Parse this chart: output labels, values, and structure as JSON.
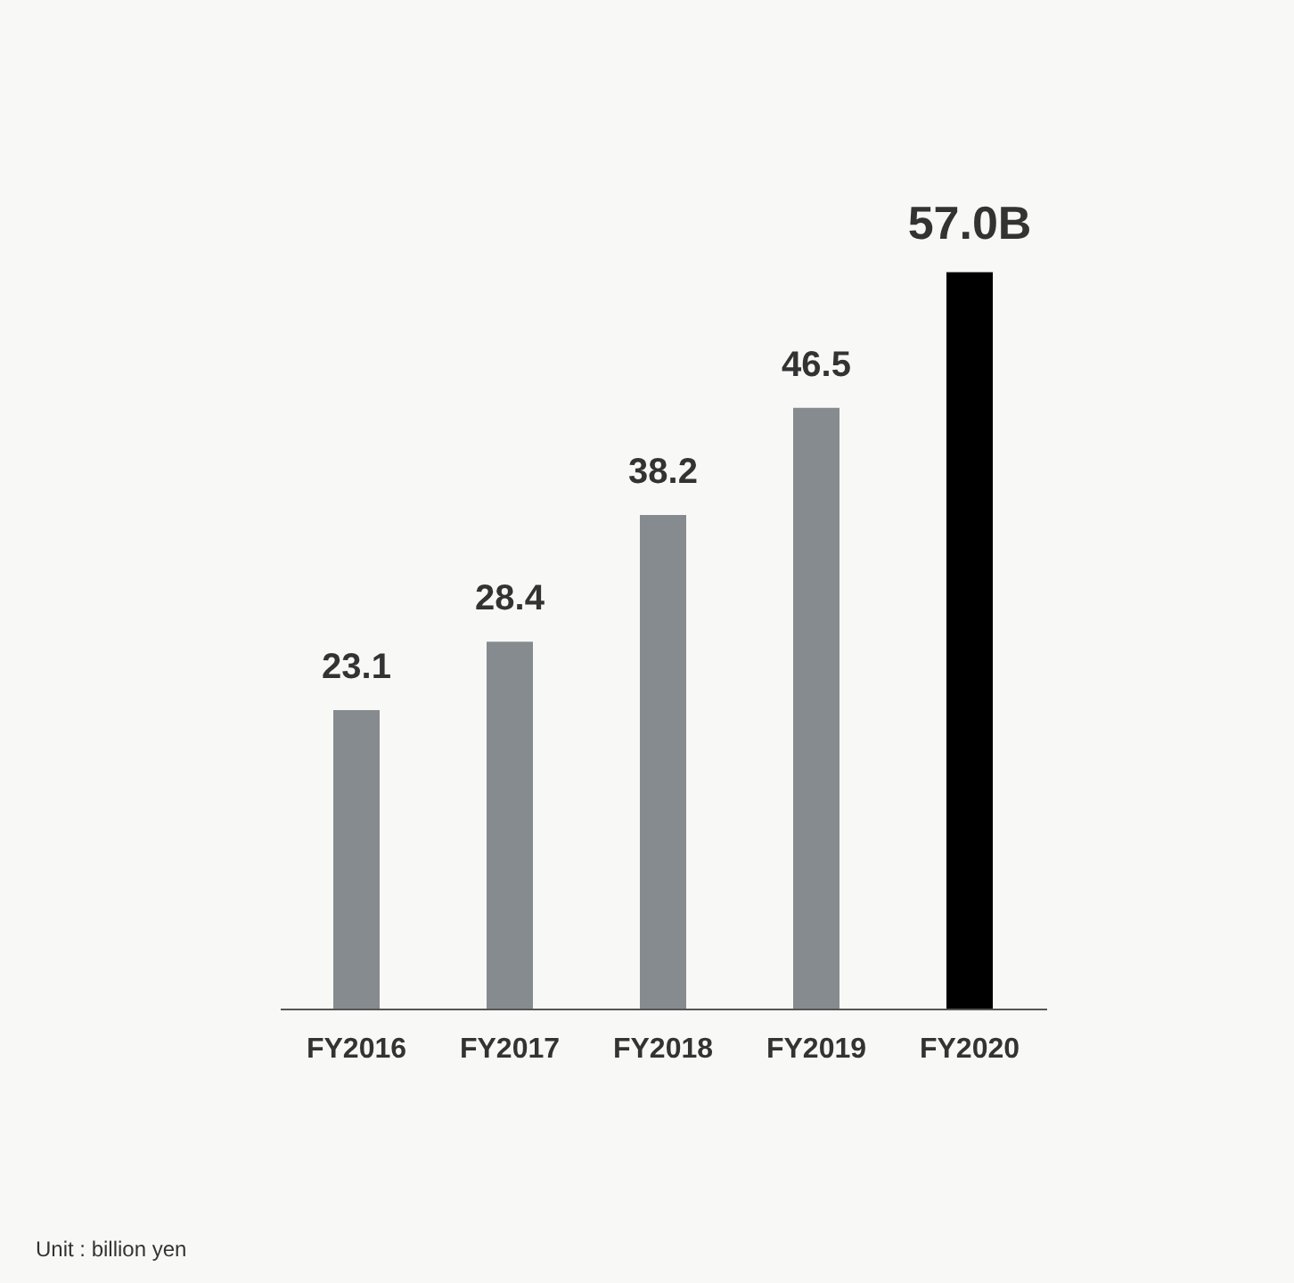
{
  "chart_data": {
    "type": "bar",
    "categories": [
      "FY2016",
      "FY2017",
      "FY2018",
      "FY2019",
      "FY2020"
    ],
    "values": [
      23.1,
      28.4,
      38.2,
      46.5,
      57.0
    ],
    "colors": [
      "#868b8f",
      "#868b8f",
      "#868b8f",
      "#868b8f",
      "#000000"
    ],
    "value_labels": [
      "23.1",
      "28.4",
      "38.2",
      "46.5",
      "57.0B"
    ],
    "tick_labels": "x",
    "grid": false,
    "annotations": [
      "Unit : billion yen"
    ]
  }
}
